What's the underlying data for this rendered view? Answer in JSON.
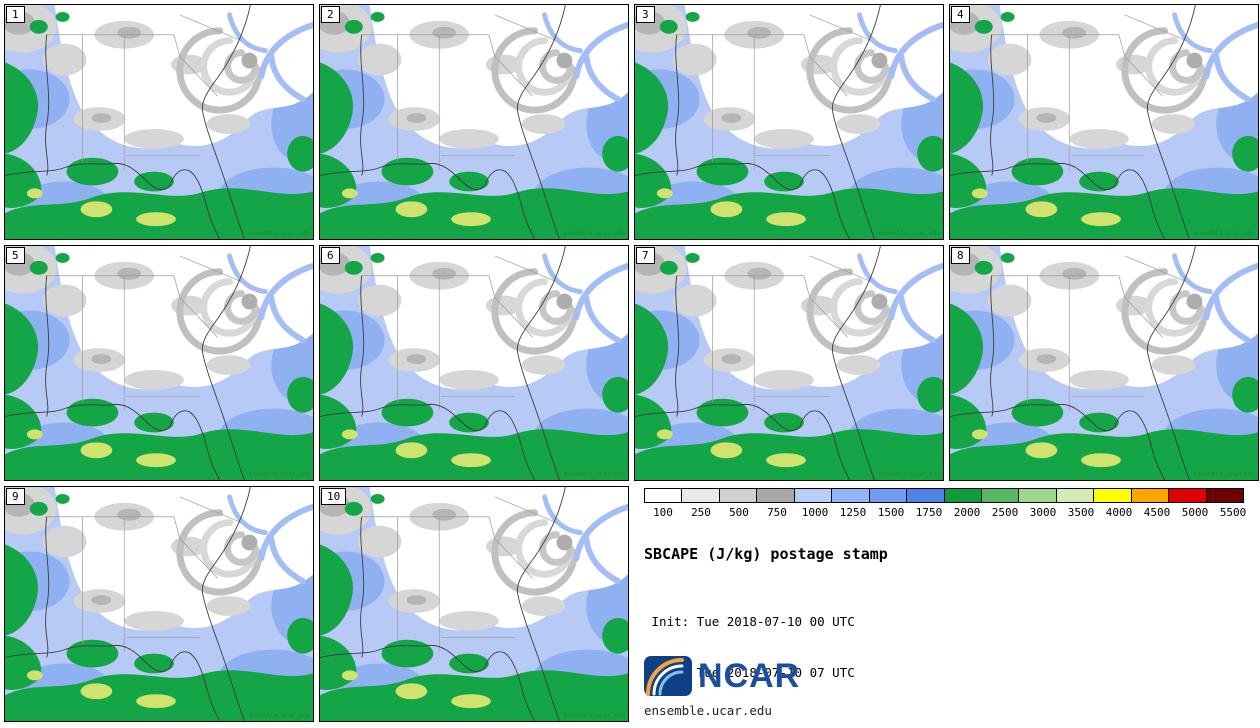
{
  "panels": [
    {
      "label": "1"
    },
    {
      "label": "2"
    },
    {
      "label": "3"
    },
    {
      "label": "4"
    },
    {
      "label": "5"
    },
    {
      "label": "6"
    },
    {
      "label": "7"
    },
    {
      "label": "8"
    },
    {
      "label": "9"
    },
    {
      "label": "10"
    }
  ],
  "legend": {
    "ticks": [
      "100",
      "250",
      "500",
      "750",
      "1000",
      "1250",
      "1500",
      "1750",
      "2000",
      "2500",
      "3000",
      "3500",
      "4000",
      "4500",
      "5000",
      "5500"
    ],
    "colors": [
      "#ffffff",
      "#e9e9e9",
      "#d1d1d1",
      "#a8a8a8",
      "#b9cdfa",
      "#93b4f7",
      "#6f9bf2",
      "#4f83e8",
      "#0e9c3c",
      "#55b964",
      "#9cd889",
      "#d2ecb4",
      "#feff00",
      "#ffa600",
      "#e00000",
      "#6e0000"
    ]
  },
  "titles": {
    "main": "SBCAPE (J/kg) postage stamp",
    "init": " Init: Tue 2018-07-10 00 UTC",
    "valid": "Valid: Tue 2018-07-10 07 UTC"
  },
  "branding": {
    "logo_text": "NCAR",
    "site": "ensemble.ucar.edu",
    "panel_watermark": "ensemble.ucar.edu"
  }
}
